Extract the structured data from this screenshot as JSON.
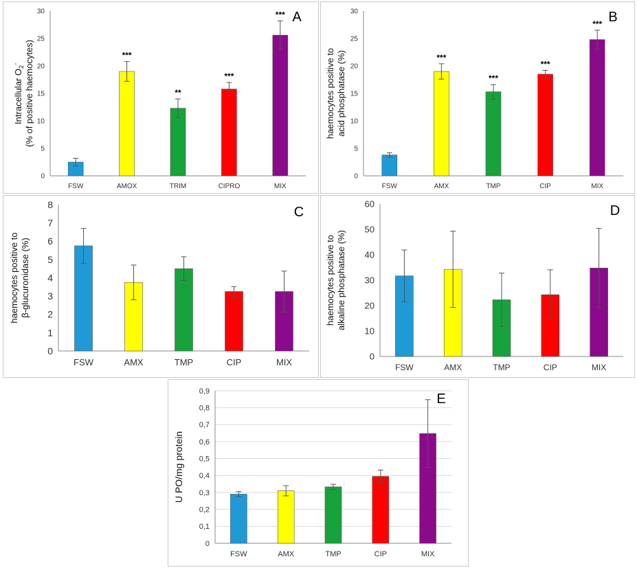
{
  "chart_data": [
    {
      "id": "A",
      "type": "bar",
      "panel_letter": "A",
      "categories": [
        "FSW",
        "AMOX",
        "TRIM",
        "CIPRO",
        "MIX"
      ],
      "values": [
        2.5,
        19.0,
        12.3,
        15.8,
        25.6
      ],
      "errors": [
        0.7,
        1.8,
        1.7,
        1.2,
        2.6
      ],
      "significance": [
        "",
        "***",
        "**",
        "***",
        "***"
      ],
      "colors": [
        "#1f9ad6",
        "#ffff00",
        "#17a33b",
        "#ff0000",
        "#8b0a8b"
      ],
      "ylabel_lines": [
        "Intracellular O",
        "(% of positive haemocytes)"
      ],
      "ylabel_sub": "2",
      "ylabel_sup": "·",
      "ylim": [
        0,
        30
      ],
      "yticks": [
        0,
        5,
        10,
        15,
        20,
        25,
        30
      ],
      "ytick_labels": [
        "0",
        "5",
        "10",
        "15",
        "20",
        "25",
        "30"
      ]
    },
    {
      "id": "B",
      "type": "bar",
      "panel_letter": "B",
      "categories": [
        "FSW",
        "AMX",
        "TMP",
        "CIP",
        "MIX"
      ],
      "values": [
        3.8,
        19.0,
        15.3,
        18.5,
        24.8
      ],
      "errors": [
        0.4,
        1.4,
        1.3,
        0.7,
        1.7
      ],
      "significance": [
        "",
        "***",
        "***",
        "***",
        "***"
      ],
      "colors": [
        "#1f9ad6",
        "#ffff00",
        "#17a33b",
        "#ff0000",
        "#8b0a8b"
      ],
      "ylabel_lines": [
        "haemocytes positive to",
        "acid phosphatase (%)"
      ],
      "ylim": [
        0,
        30
      ],
      "yticks": [
        0,
        5,
        10,
        15,
        20,
        25,
        30
      ],
      "ytick_labels": [
        "0",
        "5",
        "10",
        "15",
        "20",
        "25",
        "30"
      ]
    },
    {
      "id": "C",
      "type": "bar",
      "panel_letter": "C",
      "categories": [
        "FSW",
        "AMX",
        "TMP",
        "CIP",
        "MIX"
      ],
      "values": [
        5.75,
        3.75,
        4.5,
        3.25,
        3.25
      ],
      "errors": [
        0.95,
        0.95,
        0.65,
        0.27,
        1.12
      ],
      "significance": [
        "",
        "",
        "",
        "",
        ""
      ],
      "colors": [
        "#1f9ad6",
        "#ffff00",
        "#17a33b",
        "#ff0000",
        "#8b0a8b"
      ],
      "ylabel_lines": [
        "haemocytes positive to",
        "β-glucuronidase (%)"
      ],
      "ylim": [
        0,
        8
      ],
      "yticks": [
        0,
        1,
        2,
        3,
        4,
        5,
        6,
        7,
        8
      ],
      "ytick_labels": [
        "0",
        "1",
        "2",
        "3",
        "4",
        "5",
        "6",
        "7",
        "8"
      ]
    },
    {
      "id": "D",
      "type": "bar",
      "panel_letter": "D",
      "categories": [
        "FSW",
        "AMX",
        "TMP",
        "CIP",
        "MIX"
      ],
      "values": [
        31.7,
        34.3,
        22.3,
        24.3,
        34.8
      ],
      "errors": [
        10.2,
        15.0,
        10.5,
        9.8,
        15.6
      ],
      "significance": [
        "",
        "",
        "",
        "",
        ""
      ],
      "colors": [
        "#1f9ad6",
        "#ffff00",
        "#17a33b",
        "#ff0000",
        "#8b0a8b"
      ],
      "ylabel_lines": [
        "haemocytes positive to",
        "alkaline phosphatase (%)"
      ],
      "ylim": [
        0,
        60
      ],
      "yticks": [
        0,
        10,
        20,
        30,
        40,
        50,
        60
      ],
      "ytick_labels": [
        "0",
        "10",
        "20",
        "30",
        "40",
        "50",
        "60"
      ]
    },
    {
      "id": "E",
      "type": "bar",
      "panel_letter": "E",
      "categories": [
        "FSW",
        "AMX",
        "TMP",
        "CIP",
        "MIX"
      ],
      "values": [
        0.29,
        0.31,
        0.333,
        0.395,
        0.648
      ],
      "errors": [
        0.015,
        0.03,
        0.015,
        0.037,
        0.2
      ],
      "significance": [
        "",
        "",
        "",
        "",
        ""
      ],
      "colors": [
        "#1f9ad6",
        "#ffff00",
        "#17a33b",
        "#ff0000",
        "#8b0a8b"
      ],
      "ylabel_lines": [
        "U PO/mg protein"
      ],
      "ylim": [
        0,
        0.9
      ],
      "yticks": [
        0,
        0.1,
        0.2,
        0.3,
        0.4,
        0.5,
        0.6,
        0.7,
        0.8,
        0.9
      ],
      "ytick_labels": [
        "0",
        "0,1",
        "0,2",
        "0,3",
        "0,4",
        "0,5",
        "0,6",
        "0,7",
        "0,8",
        "0,9"
      ],
      "gridlines": true
    }
  ]
}
